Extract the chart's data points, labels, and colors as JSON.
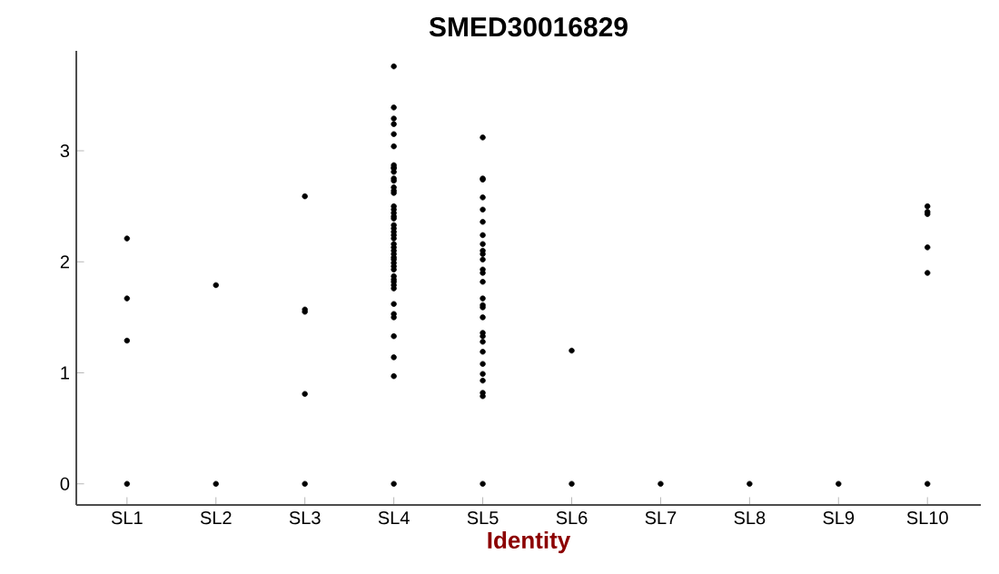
{
  "chart_data": {
    "type": "scatter",
    "title": "SMED30016829",
    "xlabel": "Identity",
    "categories": [
      "SL1",
      "SL2",
      "SL3",
      "SL4",
      "SL5",
      "SL6",
      "SL7",
      "SL8",
      "SL9",
      "SL10"
    ],
    "ylim": [
      -0.19,
      3.9
    ],
    "yticks": [
      0,
      1,
      2,
      3
    ],
    "grid": false,
    "marker": "circle",
    "series": [
      {
        "color": "#000000",
        "x": [
          "SL1",
          "SL1",
          "SL1",
          "SL1",
          "SL2",
          "SL2",
          "SL3",
          "SL3",
          "SL3",
          "SL3",
          "SL3",
          "SL4",
          "SL4",
          "SL4",
          "SL4",
          "SL4",
          "SL4",
          "SL4",
          "SL4",
          "SL4",
          "SL4",
          "SL4",
          "SL4",
          "SL4",
          "SL4",
          "SL4",
          "SL4",
          "SL4",
          "SL4",
          "SL4",
          "SL4",
          "SL4",
          "SL4",
          "SL4",
          "SL4",
          "SL4",
          "SL4",
          "SL4",
          "SL4",
          "SL4",
          "SL4",
          "SL4",
          "SL4",
          "SL4",
          "SL4",
          "SL4",
          "SL4",
          "SL4",
          "SL4",
          "SL4",
          "SL4",
          "SL4",
          "SL4",
          "SL4",
          "SL4",
          "SL4",
          "SL4",
          "SL5",
          "SL5",
          "SL5",
          "SL5",
          "SL5",
          "SL5",
          "SL5",
          "SL5",
          "SL5",
          "SL5",
          "SL5",
          "SL5",
          "SL5",
          "SL5",
          "SL5",
          "SL5",
          "SL5",
          "SL5",
          "SL5",
          "SL5",
          "SL5",
          "SL5",
          "SL5",
          "SL5",
          "SL5",
          "SL5",
          "SL5",
          "SL5",
          "SL6",
          "SL6",
          "SL7",
          "SL8",
          "SL9",
          "SL10",
          "SL10",
          "SL10",
          "SL10",
          "SL10",
          "SL10"
        ],
        "values": [
          0,
          2.21,
          1.67,
          1.29,
          0,
          1.79,
          0,
          2.59,
          1.57,
          1.55,
          0.81,
          0,
          3.76,
          3.39,
          3.29,
          3.24,
          3.15,
          3.04,
          2.87,
          2.85,
          2.84,
          2.81,
          2.75,
          2.73,
          2.67,
          2.64,
          2.62,
          2.5,
          2.47,
          2.44,
          2.41,
          2.39,
          2.33,
          2.3,
          2.27,
          2.24,
          2.21,
          2.16,
          2.13,
          2.1,
          2.07,
          2.04,
          2.02,
          1.99,
          1.96,
          1.93,
          1.87,
          1.84,
          1.82,
          1.79,
          1.76,
          1.62,
          1.53,
          1.5,
          1.33,
          1.14,
          0.97,
          0,
          3.12,
          2.75,
          2.74,
          2.58,
          2.47,
          2.36,
          2.24,
          2.16,
          2.1,
          2.07,
          2.02,
          1.93,
          1.9,
          1.82,
          1.67,
          1.61,
          1.59,
          1.5,
          1.36,
          1.33,
          1.28,
          1.19,
          1.08,
          0.99,
          0.93,
          0.82,
          0.79,
          0,
          1.2,
          0,
          0,
          0,
          0,
          2.43,
          1.9,
          2.13,
          2.5,
          2.45
        ]
      }
    ]
  }
}
